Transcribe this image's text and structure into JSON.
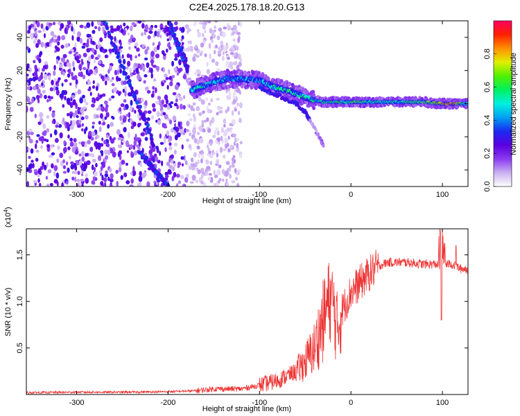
{
  "title": "C2E4.2025.178.18.20.G13",
  "chart_data": [
    {
      "type": "heatmap",
      "xlabel": "Height of straight line (km)",
      "ylabel": "Frequency (Hz)",
      "xlim": [
        -355,
        128
      ],
      "ylim": [
        -50,
        50
      ],
      "x_ticks": [
        -300,
        -200,
        -100,
        0,
        100
      ],
      "y_ticks": [
        -40,
        -20,
        0,
        20,
        40
      ],
      "colorbar": {
        "label": "Normalized spectral amplitude",
        "range": [
          0,
          1
        ],
        "ticks": [
          0.0,
          0.2,
          0.4,
          0.6,
          0.8
        ],
        "colors": [
          "#ffffff",
          "#cbb0f0",
          "#8a3af0",
          "#5a00e0",
          "#1a2af0",
          "#00a0f0",
          "#00f0e0",
          "#00f060",
          "#50f000",
          "#e0f000",
          "#ff9000",
          "#ff2000",
          "#ff0060"
        ]
      },
      "ridge": [
        {
          "x": -175,
          "y": 8,
          "a": 0.55
        },
        {
          "x": -165,
          "y": 10,
          "a": 0.55
        },
        {
          "x": -150,
          "y": 13,
          "a": 0.5
        },
        {
          "x": -135,
          "y": 15,
          "a": 0.45
        },
        {
          "x": -120,
          "y": 15,
          "a": 0.45
        },
        {
          "x": -100,
          "y": 14,
          "a": 0.45
        },
        {
          "x": -85,
          "y": 10,
          "a": 0.55
        },
        {
          "x": -70,
          "y": 8,
          "a": 0.6
        },
        {
          "x": -60,
          "y": 6,
          "a": 0.55
        },
        {
          "x": -50,
          "y": 4,
          "a": 0.6
        },
        {
          "x": -40,
          "y": 2,
          "a": 0.55
        },
        {
          "x": -30,
          "y": 1,
          "a": 0.6
        },
        {
          "x": -10,
          "y": 1,
          "a": 0.65
        },
        {
          "x": 0,
          "y": 1,
          "a": 0.7
        },
        {
          "x": 20,
          "y": 1,
          "a": 0.6
        },
        {
          "x": 50,
          "y": 1,
          "a": 0.55
        },
        {
          "x": 80,
          "y": 1,
          "a": 0.65
        },
        {
          "x": 100,
          "y": 0,
          "a": 0.9
        },
        {
          "x": 115,
          "y": 0,
          "a": 0.9
        },
        {
          "x": 128,
          "y": 0,
          "a": 0.45
        }
      ],
      "lower_branch": [
        {
          "x": -100,
          "y": 10
        },
        {
          "x": -80,
          "y": 5
        },
        {
          "x": -60,
          "y": 0
        },
        {
          "x": -50,
          "y": -5
        },
        {
          "x": -45,
          "y": -10
        },
        {
          "x": -35,
          "y": -20
        },
        {
          "x": -30,
          "y": -25
        }
      ],
      "diagonal_streaks": [
        {
          "x0": -270,
          "y0": 50,
          "x1": -215,
          "y1": -25
        },
        {
          "x0": -200,
          "y0": 50,
          "x1": -178,
          "y1": 20
        },
        {
          "x0": -230,
          "y0": -30,
          "x1": -200,
          "y1": -50
        }
      ],
      "noise_region": {
        "x_range": [
          -355,
          -120
        ],
        "y_range": [
          -50,
          50
        ]
      }
    },
    {
      "type": "line",
      "xlabel": "Height of straight line (km)",
      "ylabel": "SNR (10 * v/v)",
      "y_multiplier": "(x10",
      "y_multiplier_exp": "4",
      "y_multiplier_close": ")",
      "xlim": [
        -355,
        128
      ],
      "ylim": [
        0,
        1.78
      ],
      "x_ticks": [
        -300,
        -200,
        -100,
        0,
        100
      ],
      "y_ticks": [
        0.5,
        1.0,
        1.5
      ],
      "color": "#ee3333",
      "series": [
        {
          "x": [
            -355,
            -300,
            -250,
            -200,
            -170,
            -150,
            -120,
            -100,
            -80,
            -60,
            -50,
            -40,
            -30,
            -25,
            -20,
            -15,
            -10,
            0,
            10,
            20,
            30,
            40,
            60,
            80,
            100,
            110,
            120,
            128
          ],
          "y": [
            0.02,
            0.025,
            0.025,
            0.03,
            0.04,
            0.06,
            0.06,
            0.1,
            0.15,
            0.25,
            0.35,
            0.5,
            0.8,
            1.0,
            1.0,
            0.7,
            0.9,
            1.1,
            1.2,
            1.3,
            1.38,
            1.42,
            1.42,
            1.4,
            1.4,
            1.4,
            1.35,
            1.35
          ]
        }
      ]
    }
  ]
}
